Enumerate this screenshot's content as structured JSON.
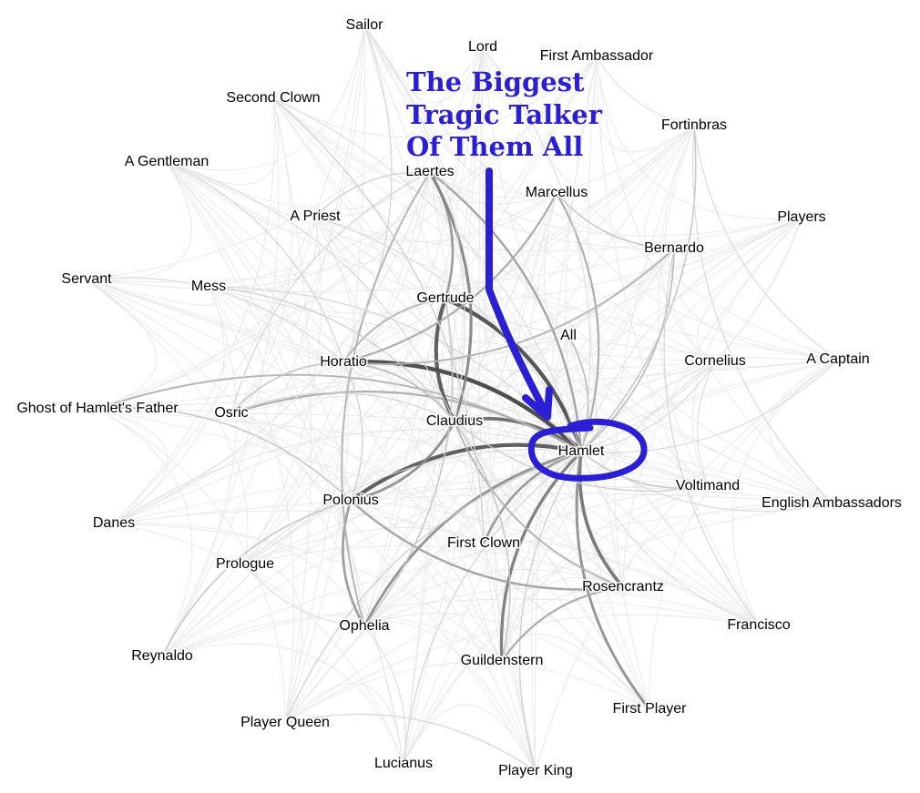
{
  "annotation": {
    "lines": [
      "The Biggest",
      "Tragic Talker",
      "Of Them All"
    ],
    "color": "#2a1fd4"
  },
  "focus_character": "Hamlet",
  "characters": [
    "Sailor",
    "Lord",
    "First Ambassador",
    "Second Clown",
    "A Gentleman",
    "Laertes",
    "Fortinbras",
    "Marcellus",
    "A Priest",
    "Players",
    "Bernardo",
    "Servant",
    "Mess",
    "Gertrude",
    "All",
    "Horatio",
    "Cornelius",
    "A Captain",
    "Ghost of Hamlet's Father",
    "Osric",
    "Claudius",
    "Hamlet",
    "Voltimand",
    "Polonius",
    "English Ambassadors",
    "Danes",
    "First Clown",
    "Prologue",
    "Rosencrantz",
    "Ophelia",
    "Francisco",
    "Reynaldo",
    "Guildenstern",
    "First Player",
    "Player Queen",
    "Lucianus",
    "Player King"
  ],
  "edges": [
    {
      "source": "Hamlet",
      "target": "Horatio",
      "strength": 0.9
    },
    {
      "source": "Hamlet",
      "target": "Gertrude",
      "strength": 0.85
    },
    {
      "source": "Hamlet",
      "target": "Polonius",
      "strength": 0.8
    },
    {
      "source": "Hamlet",
      "target": "Claudius",
      "strength": 0.7
    },
    {
      "source": "Hamlet",
      "target": "Rosencrantz",
      "strength": 0.65
    },
    {
      "source": "Hamlet",
      "target": "Guildenstern",
      "strength": 0.6
    },
    {
      "source": "Hamlet",
      "target": "Ophelia",
      "strength": 0.5
    },
    {
      "source": "Hamlet",
      "target": "First Player",
      "strength": 0.5
    },
    {
      "source": "Hamlet",
      "target": "First Clown",
      "strength": 0.45
    },
    {
      "source": "Hamlet",
      "target": "Laertes",
      "strength": 0.4
    },
    {
      "source": "Hamlet",
      "target": "Marcellus",
      "strength": 0.35
    },
    {
      "source": "Hamlet",
      "target": "Osric",
      "strength": 0.35
    },
    {
      "source": "Hamlet",
      "target": "Ghost of Hamlet's Father",
      "strength": 0.3
    },
    {
      "source": "Hamlet",
      "target": "Bernardo",
      "strength": 0.25
    },
    {
      "source": "Hamlet",
      "target": "All",
      "strength": 0.25
    },
    {
      "source": "Hamlet",
      "target": "Fortinbras",
      "strength": 0.2
    },
    {
      "source": "Hamlet",
      "target": "Voltimand",
      "strength": 0.2
    },
    {
      "source": "Hamlet",
      "target": "Player King",
      "strength": 0.15
    },
    {
      "source": "Hamlet",
      "target": "Player Queen",
      "strength": 0.15
    },
    {
      "source": "Hamlet",
      "target": "Lucianus",
      "strength": 0.12
    },
    {
      "source": "Hamlet",
      "target": "Mess",
      "strength": 0.12
    },
    {
      "source": "Hamlet",
      "target": "A Priest",
      "strength": 0.1
    },
    {
      "source": "Hamlet",
      "target": "Cornelius",
      "strength": 0.1
    },
    {
      "source": "Hamlet",
      "target": "A Captain",
      "strength": 0.1
    },
    {
      "source": "Hamlet",
      "target": "English Ambassadors",
      "strength": 0.1
    },
    {
      "source": "Hamlet",
      "target": "Francisco",
      "strength": 0.08
    },
    {
      "source": "Hamlet",
      "target": "Prologue",
      "strength": 0.08
    },
    {
      "source": "Hamlet",
      "target": "Second Clown",
      "strength": 0.08
    },
    {
      "source": "Hamlet",
      "target": "Lord",
      "strength": 0.08
    },
    {
      "source": "Hamlet",
      "target": "Players",
      "strength": 0.06
    },
    {
      "source": "Hamlet",
      "target": "Danes",
      "strength": 0.06
    },
    {
      "source": "Gertrude",
      "target": "Claudius",
      "strength": 0.8
    },
    {
      "source": "Gertrude",
      "target": "Laertes",
      "strength": 0.45
    },
    {
      "source": "Gertrude",
      "target": "Horatio",
      "strength": 0.3
    },
    {
      "source": "Polonius",
      "target": "Claudius",
      "strength": 0.5
    },
    {
      "source": "Polonius",
      "target": "Ophelia",
      "strength": 0.45
    },
    {
      "source": "Polonius",
      "target": "Rosencrantz",
      "strength": 0.4
    },
    {
      "source": "Polonius",
      "target": "Reynaldo",
      "strength": 0.2
    },
    {
      "source": "Polonius",
      "target": "Ghost of Hamlet's Father",
      "strength": 0.2
    },
    {
      "source": "Polonius",
      "target": "Horatio",
      "strength": 0.15
    },
    {
      "source": "Claudius",
      "target": "Laertes",
      "strength": 0.55
    },
    {
      "source": "Claudius",
      "target": "Rosencrantz",
      "strength": 0.3
    },
    {
      "source": "Claudius",
      "target": "Horatio",
      "strength": 0.25
    },
    {
      "source": "Claudius",
      "target": "Voltimand",
      "strength": 0.15
    },
    {
      "source": "Claudius",
      "target": "Mess",
      "strength": 0.15
    },
    {
      "source": "Claudius",
      "target": "Osric",
      "strength": 0.12
    },
    {
      "source": "Claudius",
      "target": "A Gentleman",
      "strength": 0.1
    },
    {
      "source": "Claudius",
      "target": "Sailor",
      "strength": 0.08
    },
    {
      "source": "Horatio",
      "target": "Marcellus",
      "strength": 0.35
    },
    {
      "source": "Horatio",
      "target": "Bernardo",
      "strength": 0.3
    },
    {
      "source": "Horatio",
      "target": "Osric",
      "strength": 0.2
    },
    {
      "source": "Horatio",
      "target": "Sailor",
      "strength": 0.12
    },
    {
      "source": "Horatio",
      "target": "A Gentleman",
      "strength": 0.12
    },
    {
      "source": "Horatio",
      "target": "Servant",
      "strength": 0.1
    },
    {
      "source": "Laertes",
      "target": "Ophelia",
      "strength": 0.3
    },
    {
      "source": "Laertes",
      "target": "A Priest",
      "strength": 0.15
    },
    {
      "source": "Laertes",
      "target": "Osric",
      "strength": 0.12
    },
    {
      "source": "Rosencrantz",
      "target": "Guildenstern",
      "strength": 0.35
    },
    {
      "source": "Guildenstern",
      "target": "Claudius",
      "strength": 0.2
    },
    {
      "source": "First Clown",
      "target": "Second Clown",
      "strength": 0.15
    },
    {
      "source": "Ophelia",
      "target": "Gertrude",
      "strength": 0.2
    },
    {
      "source": "Marcellus",
      "target": "Bernardo",
      "strength": 0.2
    },
    {
      "source": "Bernardo",
      "target": "Francisco",
      "strength": 0.12
    },
    {
      "source": "Fortinbras",
      "target": "A Captain",
      "strength": 0.1
    },
    {
      "source": "Fortinbras",
      "target": "English Ambassadors",
      "strength": 0.1
    },
    {
      "source": "Player King",
      "target": "Player Queen",
      "strength": 0.12
    },
    {
      "source": "Prologue",
      "target": "Ophelia",
      "strength": 0.08
    },
    {
      "source": "Lucianus",
      "target": "Ophelia",
      "strength": 0.08
    },
    {
      "source": "Danes",
      "target": "Laertes",
      "strength": 0.06
    },
    {
      "source": "First Ambassador",
      "target": "Fortinbras",
      "strength": 0.08
    },
    {
      "source": "Cornelius",
      "target": "Voltimand",
      "strength": 0.08
    },
    {
      "source": "Players",
      "target": "Hamlet",
      "strength": 0.05
    }
  ]
}
